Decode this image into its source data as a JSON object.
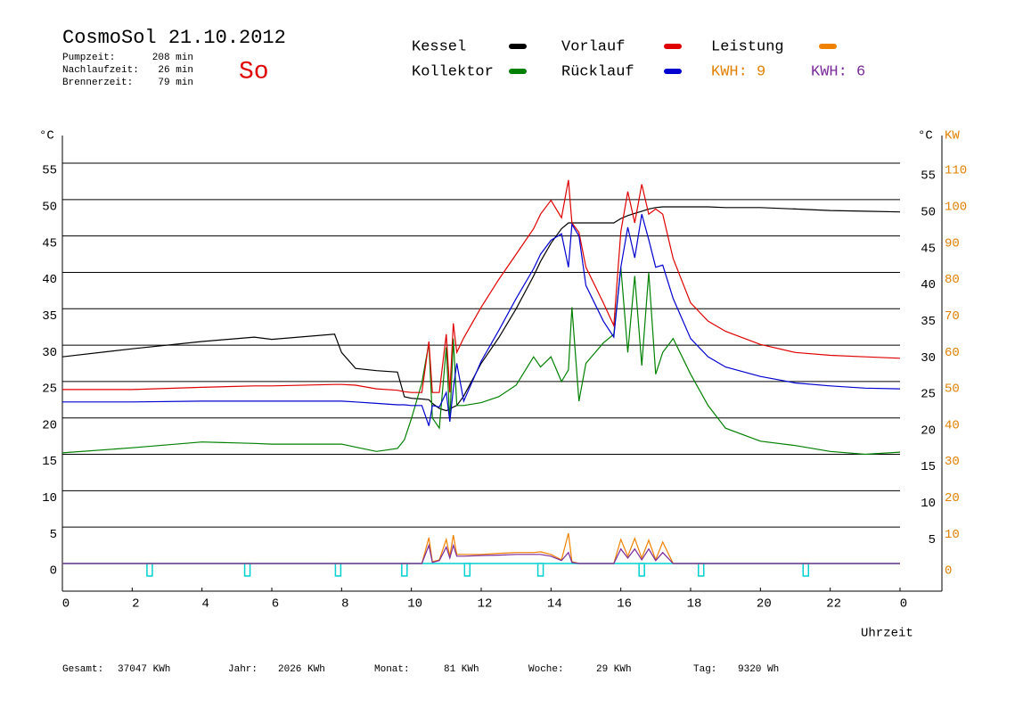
{
  "chart_data": {
    "type": "line",
    "title": "CosmoSol 21.10.2012",
    "day": "So",
    "info": [
      {
        "label": "Pumpzeit:",
        "value": "208 min"
      },
      {
        "label": "Nachlaufzeit:",
        "value": "26 min"
      },
      {
        "label": "Brennerzeit:",
        "value": "79 min"
      }
    ],
    "kwh_labels": [
      {
        "text": "KWH: 9",
        "color": "#e08000"
      },
      {
        "text": "KWH: 6",
        "color": "#7a2a9a"
      }
    ],
    "y_label": "°C",
    "y_right_label": "°C",
    "y2_label": "KW",
    "x_label": "Uhrzeit",
    "xlim": [
      0,
      25.2
    ],
    "xticks": [
      0,
      2,
      4,
      6,
      8,
      10,
      12,
      14,
      16,
      18,
      20,
      22,
      {
        "value": 24,
        "label": "0"
      }
    ],
    "ylim": [
      -3.8,
      58.8
    ],
    "yticks": [
      0,
      5,
      10,
      15,
      20,
      25,
      30,
      35,
      40,
      45,
      50,
      55
    ],
    "y2lim": [
      -7.6,
      117.6
    ],
    "y2ticks": [
      0,
      10,
      20,
      30,
      40,
      50,
      60,
      70,
      80,
      90,
      100,
      110
    ],
    "grid": true,
    "x": [
      0,
      2,
      4,
      5.5,
      6,
      7.8,
      8,
      8.4,
      9,
      9.6,
      9.8,
      10,
      10.3,
      10.5,
      10.6,
      10.8,
      11,
      11.1,
      11.2,
      11.3,
      11.5,
      12,
      12.5,
      13,
      13.5,
      13.7,
      14,
      14.3,
      14.5,
      14.6,
      14.8,
      15,
      15.5,
      15.8,
      16,
      16.2,
      16.4,
      16.6,
      16.8,
      17,
      17.2,
      17.5,
      18,
      18.5,
      19,
      20,
      21,
      22,
      23,
      24
    ],
    "series": [
      {
        "name": "Kessel",
        "color": "#000000",
        "values": [
          28.4,
          29.5,
          30.5,
          31.1,
          30.8,
          31.5,
          29,
          26.8,
          26.5,
          26.3,
          22.9,
          22.7,
          22.6,
          22.5,
          22,
          21.3,
          21,
          21.2,
          21.5,
          21.7,
          23,
          27.5,
          31,
          35,
          39.5,
          41.5,
          44,
          46,
          46.8,
          46.8,
          46.8,
          46.8,
          46.8,
          46.8,
          47.4,
          47.8,
          48.1,
          48.4,
          48.7,
          48.9,
          49,
          49,
          49,
          49,
          48.9,
          48.9,
          48.7,
          48.5,
          48.4,
          48.3
        ]
      },
      {
        "name": "Kollektor",
        "color": "#008000",
        "values": [
          15.2,
          15.9,
          16.7,
          16.5,
          16.4,
          16.4,
          16.4,
          16,
          15.4,
          15.8,
          17,
          19.9,
          24.8,
          30.3,
          20,
          18.6,
          29.7,
          19.5,
          30.9,
          21.7,
          21.7,
          22.1,
          22.9,
          24.5,
          28.4,
          27,
          28.4,
          25,
          26.6,
          35.2,
          22.3,
          27.5,
          30.3,
          31.5,
          40.7,
          29,
          39.5,
          27.2,
          40,
          26,
          29,
          30.9,
          26,
          21.7,
          18.6,
          16.8,
          16.2,
          15.4,
          15,
          15.3
        ]
      },
      {
        "name": "Vorlauf",
        "color": "#e00000",
        "values": [
          23.9,
          23.9,
          24.2,
          24.4,
          24.4,
          24.6,
          24.6,
          24.5,
          24,
          23.8,
          23.6,
          23.5,
          23.5,
          30.5,
          23.5,
          23.5,
          31.5,
          23.5,
          33,
          29,
          31,
          35.2,
          39,
          42.5,
          46,
          48,
          49.9,
          47.5,
          52.7,
          46.8,
          45.5,
          40.7,
          35.8,
          32.7,
          45.6,
          51.1,
          46.8,
          52.1,
          48,
          48.7,
          48,
          41.9,
          35.8,
          33.3,
          31.9,
          30.1,
          29,
          28.6,
          28.4,
          28.2
        ]
      },
      {
        "name": "Rücklauf",
        "color": "#0000d0",
        "values": [
          22.2,
          22.2,
          22.3,
          22.3,
          22.3,
          22.3,
          22.3,
          22.2,
          22,
          21.8,
          21.8,
          21.7,
          21.7,
          18.9,
          21.7,
          21.5,
          23.5,
          19.5,
          24,
          27.5,
          22.3,
          27.8,
          32,
          36.4,
          40.5,
          42.5,
          44.4,
          45.3,
          40.7,
          46.6,
          45,
          38.2,
          33.3,
          31.1,
          40.7,
          46.2,
          42,
          48,
          44.5,
          40.7,
          41,
          36.4,
          30.9,
          28.4,
          27,
          25.7,
          24.8,
          24.4,
          24.1,
          24
        ]
      },
      {
        "name": "Leistung",
        "color": "#f08000",
        "axis": "y2",
        "values": [
          0,
          0,
          0,
          0,
          0,
          0,
          0,
          0,
          0,
          0,
          0,
          0,
          0,
          7.1,
          0.5,
          1,
          6.6,
          2,
          7.8,
          2.5,
          2.5,
          2.5,
          2.8,
          3,
          3,
          3.2,
          2.5,
          1,
          8.3,
          0.5,
          0,
          0,
          0,
          0,
          6.6,
          2,
          6.9,
          1.5,
          6.4,
          1,
          5.9,
          0,
          0,
          0,
          0,
          0,
          0,
          0,
          0,
          0
        ]
      },
      {
        "color": "#7a2a9a",
        "axis": "y2",
        "values": [
          0,
          0,
          0,
          0,
          0,
          0,
          0,
          0,
          0,
          0,
          0,
          0,
          0,
          5,
          0.3,
          0.8,
          4.5,
          1.5,
          5,
          2,
          2,
          2.2,
          2.3,
          2.5,
          2.5,
          2.5,
          2,
          0.8,
          3,
          0.3,
          0,
          0,
          0,
          0,
          4,
          1.5,
          4,
          1,
          4,
          0.8,
          3,
          0,
          0,
          0,
          0,
          0,
          0,
          0,
          0,
          0
        ]
      }
    ],
    "pump_markers": {
      "color": "#00d0d0",
      "x": [
        2.5,
        5.3,
        7.9,
        9.8,
        11.6,
        13.7,
        16.6,
        18.3,
        21.3
      ]
    },
    "totals": [
      {
        "label": "Gesamt:",
        "value": "37047 KWh"
      },
      {
        "label": "Jahr:",
        "value": "2026 KWh"
      },
      {
        "label": "Monat:",
        "value": "81 KWh"
      },
      {
        "label": "Woche:",
        "value": "29 KWh"
      },
      {
        "label": "Tag:",
        "value": "9320 Wh"
      }
    ]
  }
}
